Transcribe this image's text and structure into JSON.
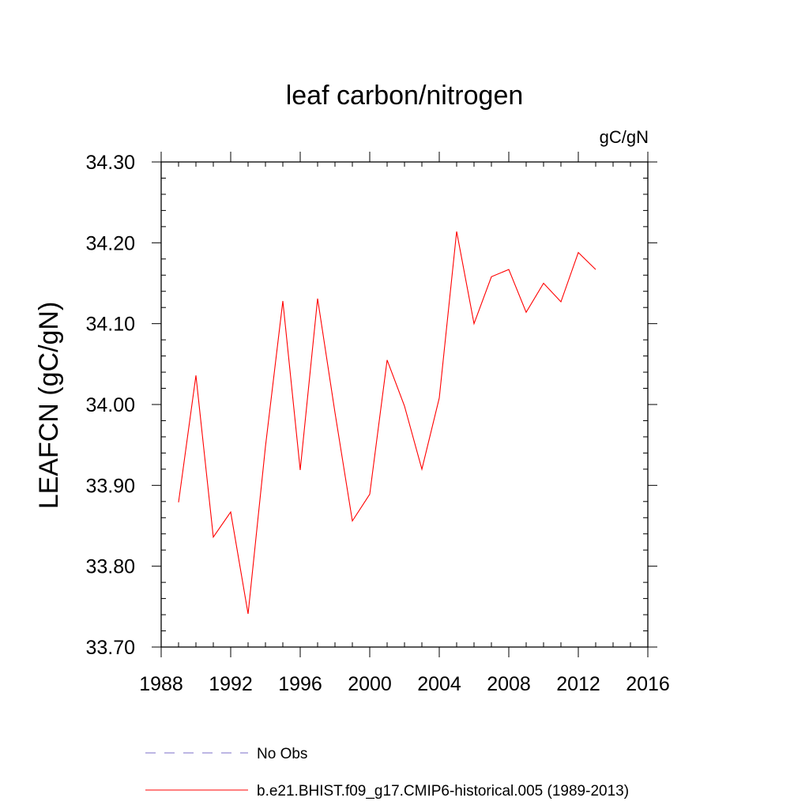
{
  "chart_data": {
    "type": "line",
    "title": "leaf carbon/nitrogen",
    "units_label": "gC/gN",
    "xlabel": "",
    "ylabel": "LEAFCN  (gC/gN)",
    "xlim": [
      1988,
      2016
    ],
    "ylim": [
      33.7,
      34.3
    ],
    "x_ticks": [
      1988,
      1992,
      1996,
      2000,
      2004,
      2008,
      2012,
      2016
    ],
    "x_tick_labels": [
      "1988",
      "1992",
      "1996",
      "2000",
      "2004",
      "2008",
      "2012",
      "2016"
    ],
    "y_ticks": [
      33.7,
      33.8,
      33.9,
      34.0,
      34.1,
      34.2,
      34.3
    ],
    "y_tick_labels": [
      "33.70",
      "33.80",
      "33.90",
      "34.00",
      "34.10",
      "34.20",
      "34.30"
    ],
    "grid": false,
    "legend_position": "bottom",
    "series": [
      {
        "name": "b.e21.BHIST.f09_g17.CMIP6-historical.005 (1989-2013)",
        "color": "#ff0000",
        "style": "solid",
        "x": [
          1989,
          1990,
          1991,
          1992,
          1993,
          1994,
          1995,
          1996,
          1997,
          1998,
          1999,
          2000,
          2001,
          2002,
          2003,
          2004,
          2005,
          2006,
          2007,
          2008,
          2009,
          2010,
          2011,
          2012,
          2013
        ],
        "y": [
          33.879,
          34.036,
          33.836,
          33.867,
          33.741,
          33.948,
          34.128,
          33.919,
          34.131,
          33.99,
          33.856,
          33.889,
          34.055,
          33.998,
          33.92,
          34.008,
          34.214,
          34.1,
          34.158,
          34.167,
          34.114,
          34.15,
          34.127,
          34.188,
          34.167
        ]
      }
    ],
    "legend": [
      {
        "label": "No Obs",
        "color": "#7b6fc8",
        "style": "dashed"
      },
      {
        "label": "b.e21.BHIST.f09_g17.CMIP6-historical.005 (1989-2013)",
        "color": "#ff0000",
        "style": "solid"
      }
    ]
  }
}
